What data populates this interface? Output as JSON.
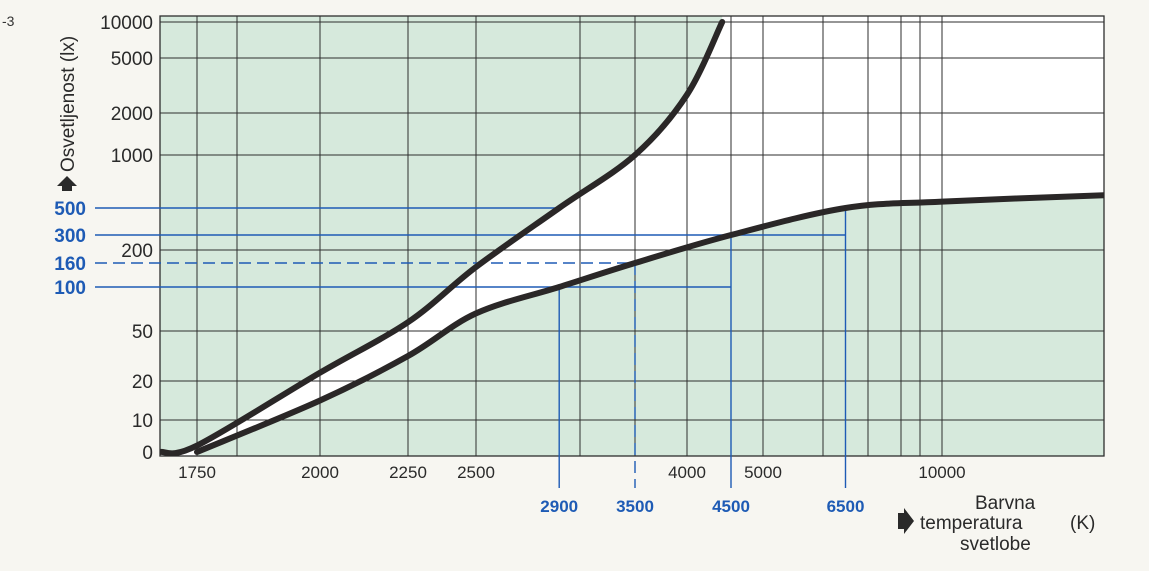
{
  "corner_label": "-3",
  "chart_data": {
    "type": "line",
    "title": "",
    "ylabel": "Osvetljenost (lx)",
    "xlabel": {
      "line1": "Barvna",
      "line2": "temperatura",
      "line3": "svetlobe",
      "unit": "(K)"
    },
    "ylim": [
      0,
      10000
    ],
    "xlim": [
      1650,
      15000
    ],
    "y_ticks": [
      {
        "value": 0,
        "label": "0"
      },
      {
        "value": 10,
        "label": "10"
      },
      {
        "value": 20,
        "label": "20"
      },
      {
        "value": 50,
        "label": "50"
      },
      {
        "value": 200,
        "label": "200"
      },
      {
        "value": 1000,
        "label": "1000"
      },
      {
        "value": 2000,
        "label": "2000"
      },
      {
        "value": 5000,
        "label": "5000"
      },
      {
        "value": 10000,
        "label": "10000"
      }
    ],
    "x_ticks": [
      {
        "value": 1750,
        "label": "1750"
      },
      {
        "value": 2000,
        "label": "2000"
      },
      {
        "value": 2250,
        "label": "2250"
      },
      {
        "value": 2500,
        "label": "2500"
      },
      {
        "value": 4000,
        "label": "4000"
      },
      {
        "value": 5000,
        "label": "5000"
      },
      {
        "value": 10000,
        "label": "10000"
      }
    ],
    "x_gridlines": [
      1750,
      1850,
      2000,
      2250,
      2500,
      3000,
      3500,
      4000,
      4500,
      5000,
      6000,
      7000,
      8000,
      9000,
      10000
    ],
    "y_gridlines": [
      10,
      20,
      50,
      200,
      1000,
      2000,
      5000,
      10000
    ],
    "highlight_y": [
      {
        "value": 500,
        "label": "500",
        "dashed": false
      },
      {
        "value": 300,
        "label": "300",
        "dashed": false
      },
      {
        "value": 160,
        "label": "160",
        "dashed": true
      },
      {
        "value": 100,
        "label": "100",
        "dashed": false
      }
    ],
    "highlight_x": [
      {
        "value": 2900,
        "label": "2900",
        "dashed": false
      },
      {
        "value": 3500,
        "label": "3500",
        "dashed": true
      },
      {
        "value": 4500,
        "label": "4500",
        "dashed": false
      },
      {
        "value": 6500,
        "label": "6500",
        "dashed": false
      }
    ],
    "series": [
      {
        "points": [
          {
            "x": 1650,
            "y": 0
          },
          {
            "x": 1750,
            "y": 2
          },
          {
            "x": 2000,
            "y": 25
          },
          {
            "x": 2250,
            "y": 60
          },
          {
            "x": 2500,
            "y": 150
          },
          {
            "x": 2900,
            "y": 500
          },
          {
            "x": 3500,
            "y": 1000
          },
          {
            "x": 4000,
            "y": 3000
          },
          {
            "x": 4400,
            "y": 10000
          }
        ]
      },
      {
        "points": [
          {
            "x": 1750,
            "y": 0
          },
          {
            "x": 2000,
            "y": 15
          },
          {
            "x": 2250,
            "y": 35
          },
          {
            "x": 2500,
            "y": 70
          },
          {
            "x": 2900,
            "y": 100
          },
          {
            "x": 3500,
            "y": 160
          },
          {
            "x": 4500,
            "y": 300
          },
          {
            "x": 6500,
            "y": 500
          },
          {
            "x": 10000,
            "y": 560
          },
          {
            "x": 15000,
            "y": 620
          }
        ]
      }
    ],
    "colors": {
      "fill": "#d6e9dc",
      "curve": "#2a2727",
      "grid": "#2e2e2e",
      "highlight": "#1e5bb5",
      "background": "#ffffff"
    }
  }
}
